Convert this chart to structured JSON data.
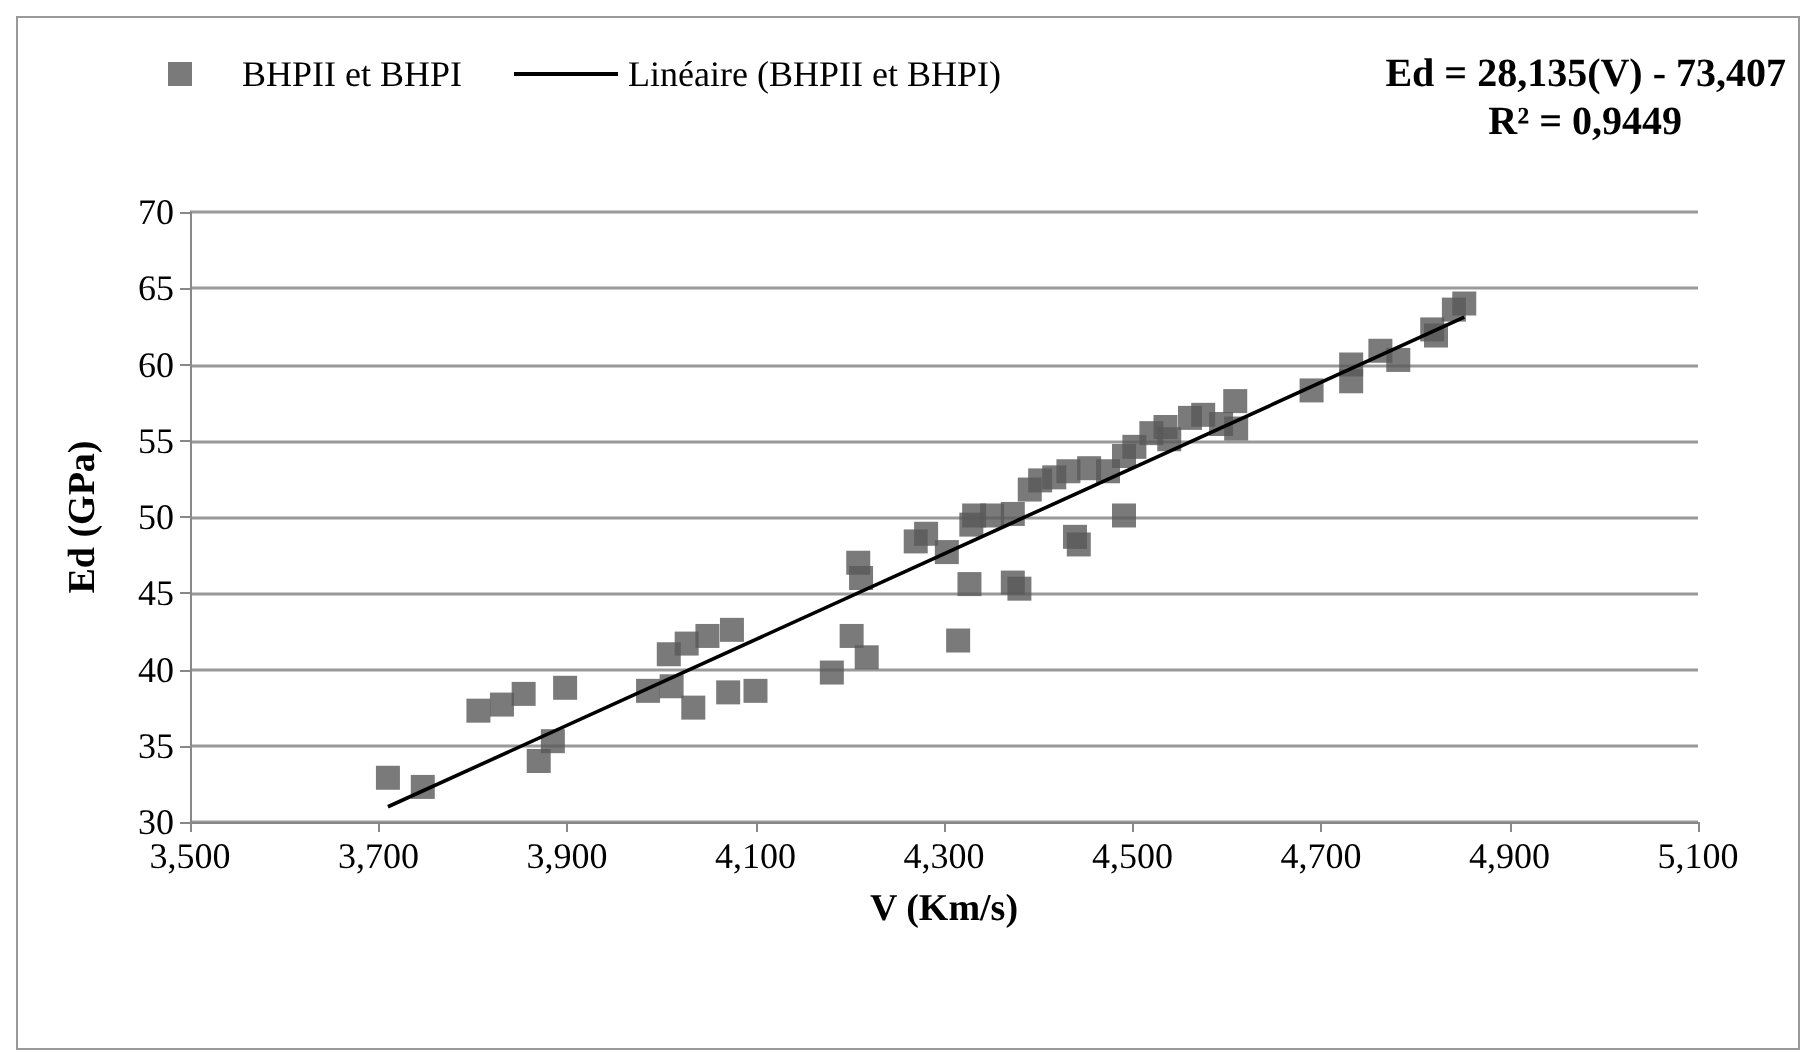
{
  "chart_data": {
    "type": "scatter",
    "xlabel": "V (Km/s)",
    "ylabel": "Ed (GPa)",
    "annotations": [
      "Ed = 28,135(V) - 73,407",
      "R² = 0,9449"
    ],
    "xlim": [
      3500,
      5100
    ],
    "xticks": [
      {
        "value": 3500,
        "label": "3,500"
      },
      {
        "value": 3700,
        "label": "3,700"
      },
      {
        "value": 3900,
        "label": "3,900"
      },
      {
        "value": 4100,
        "label": "4,100"
      },
      {
        "value": 4300,
        "label": "4,300"
      },
      {
        "value": 4500,
        "label": "4,500"
      },
      {
        "value": 4700,
        "label": "4,700"
      },
      {
        "value": 4900,
        "label": "4,900"
      },
      {
        "value": 5100,
        "label": "5,100"
      }
    ],
    "ylim": [
      30,
      70
    ],
    "yticks": [
      30,
      35,
      40,
      45,
      50,
      55,
      60,
      65,
      70
    ],
    "grid": "y",
    "legend": "top",
    "marker": "square",
    "series": [
      {
        "name": "BHPII et BHPI",
        "color": "#595959",
        "x": [
          3710,
          3747,
          3806,
          3831,
          3854,
          3898,
          3870,
          3885,
          3986,
          4008,
          4027,
          4049,
          4075,
          4034,
          4071,
          4100,
          4011,
          4181,
          4202,
          4218,
          4209,
          4212,
          4315,
          4327,
          4373,
          4380,
          4270,
          4281,
          4303,
          4329,
          4332,
          4351,
          4373,
          4391,
          4402,
          4417,
          4432,
          4443,
          4439,
          4454,
          4474,
          4491,
          4491,
          4502,
          4520,
          4535,
          4539,
          4561,
          4575,
          4594,
          4609,
          4610,
          4690,
          4732,
          4732,
          4763,
          4782,
          4818,
          4822,
          4841,
          4852
        ],
        "values": [
          32.9,
          32.3,
          37.3,
          37.7,
          38.4,
          38.8,
          34.0,
          35.3,
          38.6,
          41.0,
          41.7,
          42.2,
          42.6,
          37.5,
          38.5,
          38.6,
          38.9,
          39.8,
          42.2,
          40.8,
          47.0,
          46.0,
          41.9,
          45.6,
          45.7,
          45.3,
          48.4,
          48.9,
          47.7,
          49.5,
          50.1,
          50.1,
          50.2,
          51.8,
          52.4,
          52.6,
          53.0,
          48.2,
          48.7,
          53.2,
          53.0,
          50.1,
          54.0,
          54.6,
          55.5,
          55.9,
          55.1,
          56.5,
          56.7,
          56.1,
          57.6,
          55.8,
          58.3,
          60.0,
          58.9,
          60.9,
          60.3,
          62.3,
          61.9,
          63.6,
          64.0
        ]
      },
      {
        "name": "Linéaire (BHPII et BHPI)",
        "type": "line",
        "color": "#000000",
        "marker": "none",
        "x": [
          3710,
          4852
        ],
        "values": [
          31.0,
          63.1
        ]
      }
    ]
  }
}
